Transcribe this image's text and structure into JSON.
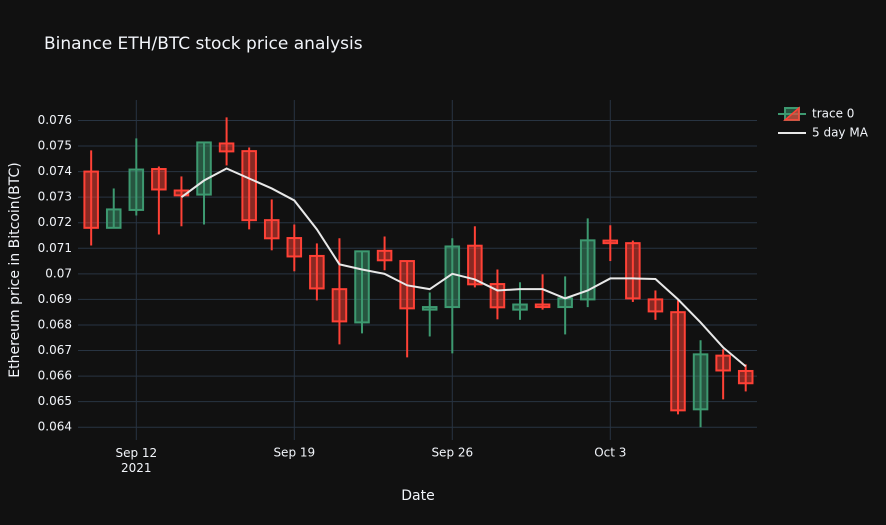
{
  "chart_data": {
    "type": "candlestick",
    "title": "Binance ETH/BTC stock price analysis",
    "x_label": "Date",
    "y_label": "Ethereum price in Bitcoin(BTC)",
    "x": [
      "2021-09-10",
      "2021-09-11",
      "2021-09-12",
      "2021-09-13",
      "2021-09-14",
      "2021-09-15",
      "2021-09-16",
      "2021-09-17",
      "2021-09-18",
      "2021-09-19",
      "2021-09-20",
      "2021-09-21",
      "2021-09-22",
      "2021-09-23",
      "2021-09-24",
      "2021-09-25",
      "2021-09-26",
      "2021-09-27",
      "2021-09-28",
      "2021-09-29",
      "2021-09-30",
      "2021-10-01",
      "2021-10-02",
      "2021-10-03",
      "2021-10-04",
      "2021-10-05",
      "2021-10-06",
      "2021-10-07",
      "2021-10-08",
      "2021-10-09"
    ],
    "series": [
      {
        "name": "trace 0",
        "type": "candlestick",
        "increasing_color": "#3d9970",
        "decreasing_color": "#ff4136",
        "open": [
          0.074,
          0.0718,
          0.0725,
          0.0741,
          0.07326,
          0.0731,
          0.0751,
          0.0748,
          0.0721,
          0.0714,
          0.0707,
          0.0694,
          0.0681,
          0.0709,
          0.0705,
          0.0686,
          0.0687,
          0.0711,
          0.0696,
          0.0686,
          0.0688,
          0.0687,
          0.069,
          0.0713,
          0.0712,
          0.069,
          0.0685,
          0.0647,
          0.0668,
          0.0662
        ],
        "high": [
          0.07483,
          0.07334,
          0.0753,
          0.0742,
          0.07381,
          0.07514,
          0.07612,
          0.07494,
          0.07291,
          0.07193,
          0.07119,
          0.07139,
          0.07088,
          0.07146,
          0.0705,
          0.06927,
          0.07139,
          0.07186,
          0.07017,
          0.06967,
          0.06998,
          0.0699,
          0.07217,
          0.0719,
          0.0713,
          0.06935,
          0.06896,
          0.0674,
          0.06705,
          0.06646
        ],
        "low": [
          0.07111,
          0.0718,
          0.07228,
          0.07154,
          0.07186,
          0.07193,
          0.07424,
          0.07174,
          0.07092,
          0.0701,
          0.06896,
          0.06724,
          0.06767,
          0.07014,
          0.06673,
          0.06755,
          0.06689,
          0.06947,
          0.06822,
          0.0682,
          0.0686,
          0.06763,
          0.0687,
          0.0705,
          0.0689,
          0.0682,
          0.0645,
          0.064,
          0.06509,
          0.0654
        ],
        "close": [
          0.0718,
          0.07252,
          0.07408,
          0.0733,
          0.07307,
          0.07514,
          0.07479,
          0.0721,
          0.07139,
          0.07068,
          0.06943,
          0.06814,
          0.07088,
          0.07053,
          0.06865,
          0.0687,
          0.07107,
          0.06959,
          0.06869,
          0.0688,
          0.0687,
          0.06904,
          0.07131,
          0.0712,
          0.06904,
          0.06853,
          0.06466,
          0.06685,
          0.06622,
          0.06572
        ]
      },
      {
        "name": "5 day MA",
        "type": "line",
        "color": "#e8e8e8",
        "values": [
          null,
          null,
          null,
          null,
          0.073,
          0.07365,
          0.07412,
          0.07373,
          0.07334,
          0.07287,
          0.07174,
          0.07037,
          0.07017,
          0.07,
          0.06955,
          0.0694,
          0.07,
          0.06978,
          0.06935,
          0.0694,
          0.0694,
          0.06904,
          0.06935,
          0.06982,
          0.06982,
          0.0698,
          0.069,
          0.0681,
          0.06712,
          0.06638
        ]
      }
    ],
    "xlim": [
      "2021-09-09T10:00",
      "2021-10-09T12:00"
    ],
    "xticks": [
      {
        "value": "2021-09-12",
        "label": "Sep 12\n2021"
      },
      {
        "value": "2021-09-19",
        "label": "Sep 19"
      },
      {
        "value": "2021-09-26",
        "label": "Sep 26"
      },
      {
        "value": "2021-10-03",
        "label": "Oct 3"
      }
    ],
    "ylim": [
      0.0635,
      0.0768
    ],
    "yticks": [
      0.064,
      0.065,
      0.066,
      0.067,
      0.068,
      0.069,
      0.07,
      0.071,
      0.072,
      0.073,
      0.074,
      0.075,
      0.076
    ],
    "grid": true,
    "legend": "top-right"
  }
}
